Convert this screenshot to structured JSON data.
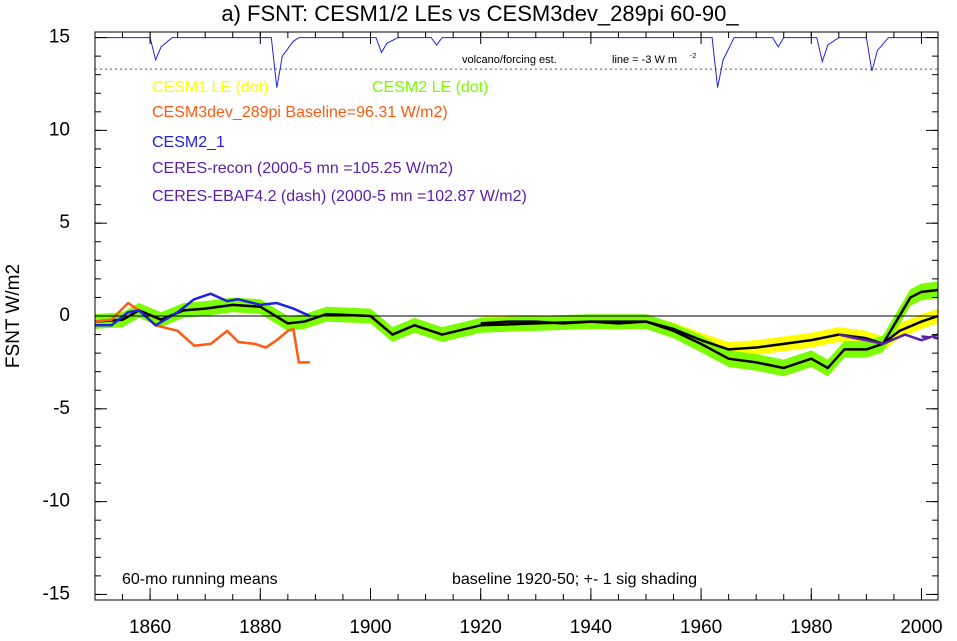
{
  "chart_data": {
    "type": "line",
    "title": "a) FSNT: CESM1/2 LEs vs CESM3dev_289pi 60-90_",
    "ylabel": "FSNT W/m2",
    "xlim": [
      1850,
      2003
    ],
    "ylim": [
      -15.3,
      15.3
    ],
    "xticks": [
      1860,
      1880,
      1900,
      1920,
      1940,
      1960,
      1980,
      2000
    ],
    "yticks": [
      -15,
      -10,
      -5,
      0,
      5,
      10,
      15
    ],
    "x_minor_step": 5,
    "y_minor_step": 1,
    "zero_line": true,
    "series": [
      {
        "name": "CESM1 LE (dot)",
        "kind": "band",
        "color": "#ffff00",
        "line_color": "#000000",
        "x": [
          1920,
          1925,
          1930,
          1935,
          1940,
          1945,
          1950,
          1955,
          1960,
          1965,
          1970,
          1975,
          1980,
          1985,
          1990,
          1993,
          1996,
          2000,
          2003
        ],
        "values": [
          -0.4,
          -0.3,
          -0.3,
          -0.4,
          -0.3,
          -0.4,
          -0.3,
          -0.7,
          -1.3,
          -1.8,
          -1.7,
          -1.5,
          -1.3,
          -1.0,
          -1.2,
          -1.5,
          -0.8,
          -0.3,
          0.0
        ],
        "sigma": [
          0.35,
          0.35,
          0.35,
          0.35,
          0.35,
          0.35,
          0.35,
          0.35,
          0.4,
          0.4,
          0.4,
          0.4,
          0.4,
          0.4,
          0.4,
          0.4,
          0.4,
          0.4,
          0.4
        ]
      },
      {
        "name": "CESM2 LE (dot)",
        "kind": "band",
        "color": "#7cfc00",
        "line_color": "#000000",
        "x": [
          1850,
          1855,
          1858,
          1862,
          1866,
          1870,
          1875,
          1880,
          1885,
          1888,
          1892,
          1900,
          1904,
          1908,
          1913,
          1920,
          1930,
          1940,
          1950,
          1955,
          1960,
          1965,
          1970,
          1975,
          1980,
          1983,
          1986,
          1990,
          1993,
          1996,
          1998,
          2000,
          2003
        ],
        "values": [
          -0.3,
          -0.2,
          0.3,
          -0.2,
          0.3,
          0.4,
          0.6,
          0.5,
          -0.4,
          -0.3,
          0.1,
          0.0,
          -1.0,
          -0.5,
          -1.0,
          -0.5,
          -0.4,
          -0.3,
          -0.3,
          -0.8,
          -1.5,
          -2.3,
          -2.5,
          -2.8,
          -2.3,
          -2.8,
          -1.8,
          -1.8,
          -1.5,
          0.0,
          1.0,
          1.3,
          1.4
        ],
        "sigma": [
          0.4,
          0.4,
          0.4,
          0.4,
          0.4,
          0.4,
          0.4,
          0.4,
          0.4,
          0.4,
          0.4,
          0.4,
          0.4,
          0.4,
          0.4,
          0.4,
          0.4,
          0.4,
          0.4,
          0.4,
          0.45,
          0.45,
          0.45,
          0.45,
          0.45,
          0.45,
          0.45,
          0.45,
          0.45,
          0.45,
          0.45,
          0.45,
          0.45
        ]
      },
      {
        "name": "CESM3dev_289pi Baseline=96.31 W/m2)",
        "kind": "line",
        "color": "#ff5a10",
        "x": [
          1850,
          1853,
          1856,
          1858,
          1861,
          1865,
          1868,
          1871,
          1874,
          1876,
          1879,
          1881,
          1883,
          1885,
          1886,
          1887,
          1889
        ],
        "values": [
          -0.3,
          -0.2,
          0.7,
          0.3,
          -0.5,
          -0.8,
          -1.6,
          -1.5,
          -0.8,
          -1.4,
          -1.5,
          -1.7,
          -1.3,
          -0.8,
          -0.7,
          -2.5,
          -2.5
        ]
      },
      {
        "name": "CESM2_1",
        "kind": "line",
        "color": "#2222dd",
        "x": [
          1850,
          1853,
          1856,
          1858,
          1861,
          1865,
          1868,
          1871,
          1874,
          1876,
          1880,
          1883,
          1886,
          1889
        ],
        "values": [
          -0.5,
          -0.5,
          0.2,
          0.3,
          -0.5,
          0.2,
          0.9,
          1.2,
          0.8,
          0.9,
          0.6,
          0.7,
          0.4,
          0.0
        ]
      },
      {
        "name": "CERES-recon (2000-5 mn =105.25 W/m2)",
        "kind": "line",
        "color": "#5a1fa8",
        "x": [
          1985,
          1988,
          1990,
          1993,
          1997,
          2000,
          2003
        ],
        "values": [
          -1.0,
          -1.2,
          -1.3,
          -1.5,
          -1.0,
          -1.3,
          -1.0
        ]
      },
      {
        "name": "CERES-EBAF4.2 (dash) (2000-5 mn =102.87 W/m2)",
        "kind": "line",
        "color": "#5a1fa8",
        "dash": true,
        "x": [
          2000,
          2003
        ],
        "values": [
          -1.1,
          -1.2
        ]
      }
    ],
    "volcano": {
      "label": "volcano/forcing est.",
      "scale_label": "line = -3 W m",
      "scale_exponent": "-2",
      "reference": 13.3,
      "color": "#2222dd",
      "x": [
        1850,
        1860,
        1861,
        1862,
        1864,
        1882,
        1883,
        1884,
        1886,
        1887,
        1888,
        1901,
        1902,
        1903,
        1905,
        1911,
        1912,
        1913,
        1962,
        1963,
        1964,
        1966,
        1973,
        1974,
        1975,
        1981,
        1982,
        1983,
        1985,
        1990,
        1991,
        1992,
        1994,
        2003
      ],
      "values": [
        15,
        15,
        13.8,
        14.5,
        15,
        15,
        12.3,
        14.0,
        14.8,
        15,
        15,
        15,
        14.2,
        14.7,
        15,
        15,
        14.6,
        15,
        15,
        12.3,
        13.8,
        15,
        15,
        14.5,
        15,
        15,
        13.7,
        14.6,
        15,
        15,
        13.2,
        14.3,
        15,
        15
      ]
    },
    "annotations": [
      "60-mo running means",
      "baseline 1920-50; +- 1 sig shading"
    ]
  }
}
